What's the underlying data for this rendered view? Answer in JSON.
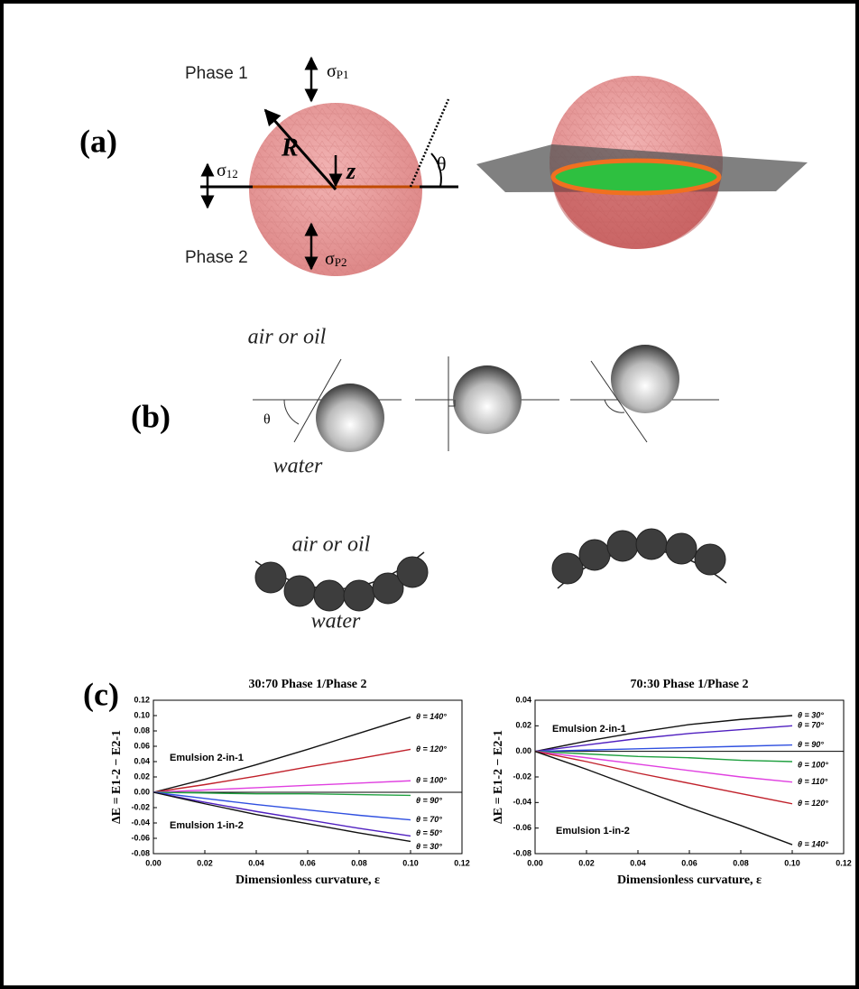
{
  "panel_a": {
    "label": "(a)",
    "phase1": "Phase 1",
    "phase2": "Phase 2",
    "sigma_p1": {
      "symbol": "σ",
      "sub": "P1"
    },
    "sigma_12": {
      "symbol": "σ",
      "sub": "12"
    },
    "sigma_p2": {
      "symbol": "σ",
      "sub": "P2"
    },
    "radius": "R",
    "height": "z",
    "angle": "θ"
  },
  "panel_b": {
    "label": "(b)",
    "top_medium": "air or oil",
    "bottom_medium": "water",
    "angle": "θ",
    "chain_top_medium": "air or oil",
    "chain_bottom_medium": "water"
  },
  "panel_c": {
    "label": "(c)"
  },
  "chart_data": [
    {
      "type": "line",
      "title": "30:70 Phase 1/Phase 2",
      "x_label": "Dimensionless curvature, ε",
      "y_label": "ΔE = E1-2 − E2-1",
      "annotations": [
        "Emulsion 2-in-1",
        "Emulsion 1-in-2"
      ],
      "x": [
        0,
        0.02,
        0.04,
        0.06,
        0.08,
        0.1
      ],
      "series": [
        {
          "name": "θ = 140°",
          "color": "#111111",
          "values": [
            0,
            0.017,
            0.036,
            0.056,
            0.077,
            0.098
          ]
        },
        {
          "name": "θ = 120°",
          "color": "#c0202a",
          "values": [
            0,
            0.01,
            0.021,
            0.033,
            0.044,
            0.056
          ]
        },
        {
          "name": "θ = 100°",
          "color": "#e040e0",
          "values": [
            0,
            0.003,
            0.006,
            0.009,
            0.012,
            0.015
          ]
        },
        {
          "name": "θ = 90°",
          "color": "#20a040",
          "values": [
            0,
            -0.001,
            -0.002,
            -0.002,
            -0.003,
            -0.004
          ]
        },
        {
          "name": "θ = 70°",
          "color": "#3050e0",
          "values": [
            0,
            -0.008,
            -0.016,
            -0.023,
            -0.03,
            -0.036
          ]
        },
        {
          "name": "θ = 50°",
          "color": "#5020c0",
          "values": [
            0,
            -0.013,
            -0.025,
            -0.036,
            -0.047,
            -0.057
          ]
        },
        {
          "name": "θ = 30°",
          "color": "#111111",
          "values": [
            0,
            -0.015,
            -0.029,
            -0.041,
            -0.053,
            -0.064
          ]
        }
      ],
      "xlim": [
        0,
        0.12
      ],
      "ylim": [
        -0.08,
        0.12
      ],
      "xticks": [
        {
          "value": 0,
          "label": "0.00"
        },
        {
          "value": 0.02,
          "label": "0.02"
        },
        {
          "value": 0.04,
          "label": "0.04"
        },
        {
          "value": 0.06,
          "label": "0.06"
        },
        {
          "value": 0.08,
          "label": "0.08"
        },
        {
          "value": 0.1,
          "label": "0.10"
        },
        {
          "value": 0.12,
          "label": "0.12"
        }
      ],
      "yticks": [
        {
          "value": -0.08,
          "label": "-0.08"
        },
        {
          "value": -0.06,
          "label": "-0.06"
        },
        {
          "value": -0.04,
          "label": "-0.04"
        },
        {
          "value": -0.02,
          "label": "-0.02"
        },
        {
          "value": 0,
          "label": "0.00"
        },
        {
          "value": 0.02,
          "label": "0.02"
        },
        {
          "value": 0.04,
          "label": "0.04"
        },
        {
          "value": 0.06,
          "label": "0.06"
        },
        {
          "value": 0.08,
          "label": "0.08"
        },
        {
          "value": 0.1,
          "label": "0.10"
        },
        {
          "value": 0.12,
          "label": "0.12"
        }
      ]
    },
    {
      "type": "line",
      "title": "70:30 Phase 1/Phase 2",
      "x_label": "Dimensionless curvature, ε",
      "y_label": "ΔE = E1-2 − E2-1",
      "annotations": [
        "Emulsion 2-in-1",
        "Emulsion 1-in-2"
      ],
      "x": [
        0,
        0.02,
        0.04,
        0.06,
        0.08,
        0.1
      ],
      "series": [
        {
          "name": "θ = 30°",
          "color": "#111111",
          "values": [
            0,
            0.008,
            0.015,
            0.021,
            0.025,
            0.028
          ]
        },
        {
          "name": "θ = 70°",
          "color": "#5020c0",
          "values": [
            0,
            0.005,
            0.01,
            0.014,
            0.017,
            0.02
          ]
        },
        {
          "name": "θ = 90°",
          "color": "#3050e0",
          "values": [
            0,
            0.001,
            0.002,
            0.003,
            0.004,
            0.005
          ]
        },
        {
          "name": "θ = 100°",
          "color": "#20a040",
          "values": [
            0,
            -0.002,
            -0.004,
            -0.005,
            -0.007,
            -0.008
          ]
        },
        {
          "name": "θ = 110°",
          "color": "#e040e0",
          "values": [
            0,
            -0.005,
            -0.01,
            -0.015,
            -0.02,
            -0.024
          ]
        },
        {
          "name": "θ = 120°",
          "color": "#c0202a",
          "values": [
            0,
            -0.008,
            -0.017,
            -0.025,
            -0.033,
            -0.041
          ]
        },
        {
          "name": "θ = 140°",
          "color": "#111111",
          "values": [
            0,
            -0.014,
            -0.029,
            -0.044,
            -0.058,
            -0.073
          ]
        }
      ],
      "xlim": [
        0,
        0.12
      ],
      "ylim": [
        -0.08,
        0.04
      ],
      "xticks": [
        {
          "value": 0,
          "label": "0.00"
        },
        {
          "value": 0.02,
          "label": "0.02"
        },
        {
          "value": 0.04,
          "label": "0.04"
        },
        {
          "value": 0.06,
          "label": "0.06"
        },
        {
          "value": 0.08,
          "label": "0.08"
        },
        {
          "value": 0.1,
          "label": "0.10"
        },
        {
          "value": 0.12,
          "label": "0.12"
        }
      ],
      "yticks": [
        {
          "value": -0.08,
          "label": "-0.08"
        },
        {
          "value": -0.06,
          "label": "-0.06"
        },
        {
          "value": -0.04,
          "label": "-0.04"
        },
        {
          "value": -0.02,
          "label": "-0.02"
        },
        {
          "value": 0,
          "label": "0.00"
        },
        {
          "value": 0.02,
          "label": "0.02"
        },
        {
          "value": 0.04,
          "label": "0.04"
        }
      ]
    }
  ]
}
